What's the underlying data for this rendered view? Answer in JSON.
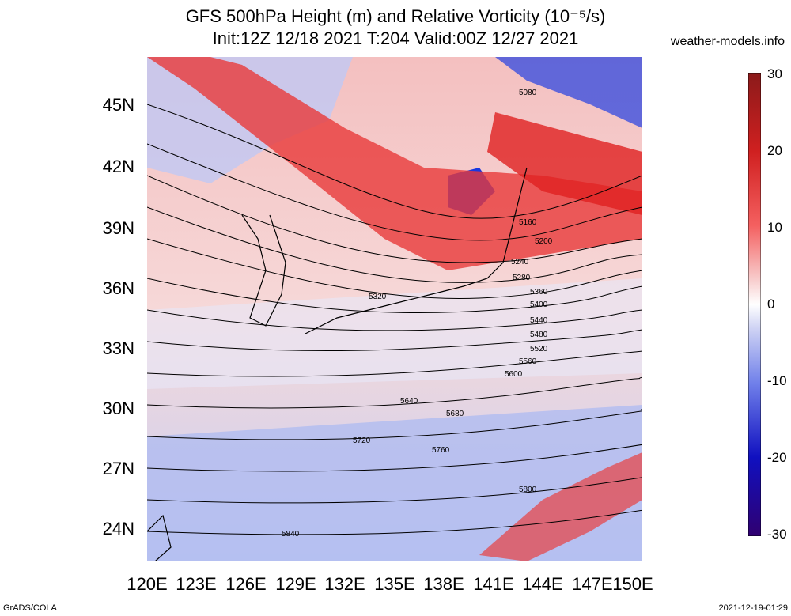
{
  "header": {
    "title_line1": "GFS 500hPa Height (m) and Relative Vorticity (10⁻⁵/s)",
    "title_line2": "Init:12Z 12/18 2021 T:204 Valid:00Z 12/27 2021",
    "site": "weather-models.info"
  },
  "axes": {
    "lat_labels": [
      "45N",
      "42N",
      "39N",
      "36N",
      "33N",
      "30N",
      "27N",
      "24N"
    ],
    "lon_labels": [
      "120E",
      "123E",
      "126E",
      "129E",
      "132E",
      "135E",
      "138E",
      "141E",
      "144E",
      "147E",
      "150E"
    ]
  },
  "colorbar": {
    "labels": [
      "30",
      "20",
      "10",
      "0",
      "-10",
      "-20",
      "-30"
    ],
    "colors": [
      "#5c0a0a",
      "#c02020",
      "#f04040",
      "#f8b0b0",
      "#ffffff",
      "#b0b8f0",
      "#4050e0",
      "#1010b0",
      "#200060"
    ]
  },
  "contour_labels": [
    "5080",
    "5160",
    "5200",
    "5240",
    "5280",
    "5320",
    "5360",
    "5400",
    "5440",
    "5480",
    "5520",
    "5560",
    "5600",
    "5640",
    "5680",
    "5720",
    "5760",
    "5800",
    "5840"
  ],
  "footer": {
    "left": "GrADS/COLA",
    "right": "2021-12-19-01:29"
  }
}
